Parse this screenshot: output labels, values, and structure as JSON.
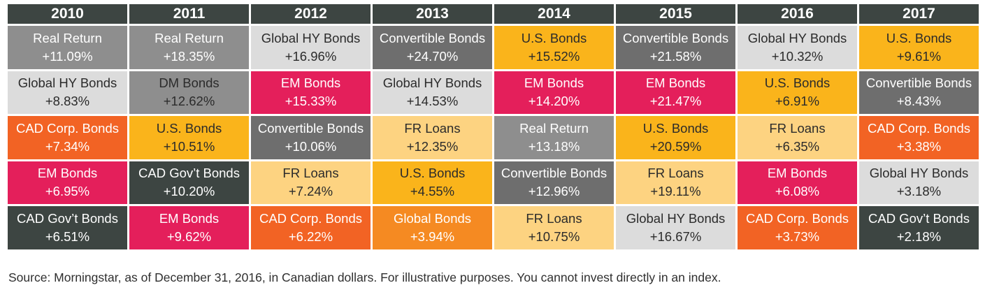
{
  "chart_data": {
    "type": "table",
    "title": "",
    "years": [
      "2010",
      "2011",
      "2012",
      "2013",
      "2014",
      "2015",
      "2016",
      "2017"
    ],
    "columns": [
      [
        {
          "asset": "Real Return",
          "return_pct": 11.09,
          "label": "+11.09%"
        },
        {
          "asset": "Global HY Bonds",
          "return_pct": 8.83,
          "label": "+8.83%"
        },
        {
          "asset": "CAD Corp. Bonds",
          "return_pct": 7.34,
          "label": "+7.34%"
        },
        {
          "asset": "EM Bonds",
          "return_pct": 6.95,
          "label": "+6.95%"
        },
        {
          "asset": "CAD Gov’t Bonds",
          "return_pct": 6.51,
          "label": "+6.51%"
        }
      ],
      [
        {
          "asset": "Real Return",
          "return_pct": 18.35,
          "label": "+18.35%"
        },
        {
          "asset": "DM Bonds",
          "return_pct": 12.62,
          "label": "+12.62%"
        },
        {
          "asset": "U.S. Bonds",
          "return_pct": 10.51,
          "label": "+10.51%"
        },
        {
          "asset": "CAD Gov’t Bonds",
          "return_pct": 10.2,
          "label": "+10.20%"
        },
        {
          "asset": "EM Bonds",
          "return_pct": 9.62,
          "label": "+9.62%"
        }
      ],
      [
        {
          "asset": "Global HY Bonds",
          "return_pct": 16.96,
          "label": "+16.96%"
        },
        {
          "asset": "EM Bonds",
          "return_pct": 15.33,
          "label": "+15.33%"
        },
        {
          "asset": "Convertible Bonds",
          "return_pct": 10.06,
          "label": "+10.06%"
        },
        {
          "asset": "FR Loans",
          "return_pct": 7.24,
          "label": "+7.24%"
        },
        {
          "asset": "CAD Corp. Bonds",
          "return_pct": 6.22,
          "label": "+6.22%"
        }
      ],
      [
        {
          "asset": "Convertible Bonds",
          "return_pct": 24.7,
          "label": "+24.70%"
        },
        {
          "asset": "Global HY Bonds",
          "return_pct": 14.53,
          "label": "+14.53%"
        },
        {
          "asset": "FR Loans",
          "return_pct": 12.35,
          "label": "+12.35%"
        },
        {
          "asset": "U.S. Bonds",
          "return_pct": 4.55,
          "label": "+4.55%"
        },
        {
          "asset": "Global Bonds",
          "return_pct": 3.94,
          "label": "+3.94%"
        }
      ],
      [
        {
          "asset": "U.S. Bonds",
          "return_pct": 15.52,
          "label": "+15.52%"
        },
        {
          "asset": "EM Bonds",
          "return_pct": 14.2,
          "label": "+14.20%"
        },
        {
          "asset": "Real Return",
          "return_pct": 13.18,
          "label": "+13.18%"
        },
        {
          "asset": "Convertible Bonds",
          "return_pct": 12.96,
          "label": "+12.96%"
        },
        {
          "asset": "FR Loans",
          "return_pct": 10.75,
          "label": "+10.75%"
        }
      ],
      [
        {
          "asset": "Convertible Bonds",
          "return_pct": 21.58,
          "label": "+21.58%"
        },
        {
          "asset": "EM Bonds",
          "return_pct": 21.47,
          "label": "+21.47%"
        },
        {
          "asset": "U.S. Bonds",
          "return_pct": 20.59,
          "label": "+20.59%"
        },
        {
          "asset": "FR Loans",
          "return_pct": 19.11,
          "label": "+19.11%"
        },
        {
          "asset": "Global HY Bonds",
          "return_pct": 16.67,
          "label": "+16.67%"
        }
      ],
      [
        {
          "asset": "Global HY Bonds",
          "return_pct": 10.32,
          "label": "+10.32%"
        },
        {
          "asset": "U.S. Bonds",
          "return_pct": 6.91,
          "label": "+6.91%"
        },
        {
          "asset": "FR Loans",
          "return_pct": 6.35,
          "label": "+6.35%"
        },
        {
          "asset": "EM Bonds",
          "return_pct": 6.08,
          "label": "+6.08%"
        },
        {
          "asset": "CAD Corp. Bonds",
          "return_pct": 3.73,
          "label": "+3.73%"
        }
      ],
      [
        {
          "asset": "U.S. Bonds",
          "return_pct": 9.61,
          "label": "+9.61%"
        },
        {
          "asset": "Convertible Bonds",
          "return_pct": 8.43,
          "label": "+8.43%"
        },
        {
          "asset": "CAD Corp. Bonds",
          "return_pct": 3.38,
          "label": "+3.38%"
        },
        {
          "asset": "Global HY Bonds",
          "return_pct": 3.18,
          "label": "+3.18%"
        },
        {
          "asset": "CAD Gov’t Bonds",
          "return_pct": 2.18,
          "label": "+2.18%"
        }
      ]
    ],
    "asset_colors": {
      "Real Return": {
        "bg": "#8e8e8e",
        "fg": "#ffffff"
      },
      "Global HY Bonds": {
        "bg": "#dcdcdc",
        "fg": "#2b2b2b"
      },
      "CAD Corp. Bonds": {
        "bg": "#f26324",
        "fg": "#ffffff"
      },
      "EM Bonds": {
        "bg": "#e41f5b",
        "fg": "#ffffff"
      },
      "CAD Gov’t Bonds": {
        "bg": "#3d4542",
        "fg": "#ffffff"
      },
      "DM Bonds": {
        "bg": "#8e8e8e",
        "fg": "#2b2b2b"
      },
      "U.S. Bonds": {
        "bg": "#fab41b",
        "fg": "#2b2b2b"
      },
      "Convertible Bonds": {
        "bg": "#6e6e6e",
        "fg": "#ffffff"
      },
      "FR Loans": {
        "bg": "#fdd381",
        "fg": "#2b2b2b"
      },
      "Global Bonds": {
        "bg": "#f58a22",
        "fg": "#ffffff"
      }
    },
    "header_color": "#3d4542"
  },
  "footer": {
    "source": "Source: Morningstar, as of December 31, 2016, in Canadian dollars. For illustrative purposes. You cannot invest directly in an index."
  }
}
